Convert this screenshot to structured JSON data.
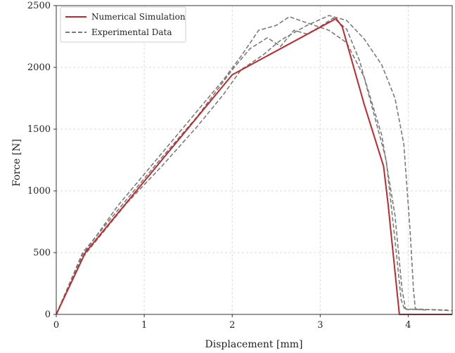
{
  "chart_data": {
    "type": "line",
    "xlabel": "Displacement [mm]",
    "ylabel": "Force [N]",
    "xlim": [
      0,
      4.5
    ],
    "ylim": [
      0,
      2500
    ],
    "xticks": [
      0,
      1,
      2,
      3,
      4
    ],
    "yticks": [
      0,
      500,
      1000,
      1500,
      2000,
      2500
    ],
    "grid": true,
    "legend_position": "top-left",
    "series": [
      {
        "name": "Numerical Simulation",
        "color": "#c0282d",
        "style": "solid",
        "x": [
          0,
          0.33,
          2.0,
          3.18,
          3.25,
          3.5,
          3.72,
          3.77,
          3.9,
          4.5
        ],
        "y": [
          0,
          500,
          1940,
          2395,
          2330,
          1700,
          1200,
          900,
          0,
          0
        ]
      },
      {
        "name": "Experimental Data",
        "color": "#7a7a7a",
        "style": "dashed",
        "x": [
          0,
          0.3,
          0.8,
          1.2,
          1.6,
          2.0,
          2.2,
          2.4,
          2.55,
          2.7,
          2.85,
          3.0,
          3.15,
          3.3,
          3.45,
          3.6,
          3.75,
          3.85,
          3.92,
          3.96,
          4.2,
          4.45
        ],
        "y": [
          0,
          500,
          930,
          1270,
          1600,
          1980,
          2150,
          2240,
          2170,
          2300,
          2270,
          2330,
          2400,
          2310,
          2050,
          1650,
          1250,
          600,
          120,
          40,
          40,
          35
        ]
      },
      {
        "x": [
          0,
          0.3,
          0.7,
          1.1,
          1.5,
          1.9,
          2.1,
          2.3,
          2.5,
          2.65,
          2.85,
          3.1,
          3.3,
          3.5,
          3.7,
          3.85,
          3.93,
          3.97,
          4.2
        ],
        "y": [
          0,
          480,
          880,
          1220,
          1560,
          1900,
          2090,
          2300,
          2340,
          2410,
          2360,
          2300,
          2200,
          1920,
          1450,
          800,
          200,
          45,
          35
        ]
      },
      {
        "x": [
          0,
          0.3,
          0.8,
          1.2,
          1.6,
          1.9,
          2.1,
          2.35,
          2.55,
          2.85,
          3.1,
          3.3,
          3.5,
          3.7,
          3.85,
          3.95,
          4.02,
          4.06,
          4.08,
          4.2,
          4.5
        ],
        "y": [
          0,
          460,
          900,
          1200,
          1520,
          1780,
          1980,
          2100,
          2220,
          2340,
          2420,
          2380,
          2230,
          2020,
          1750,
          1380,
          700,
          200,
          45,
          40,
          30
        ]
      }
    ]
  }
}
